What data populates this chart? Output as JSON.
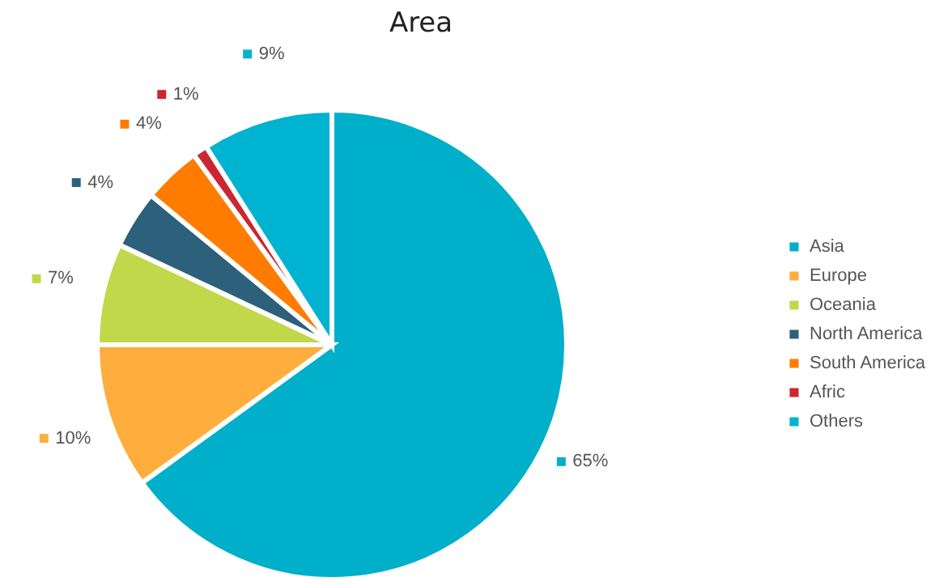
{
  "chart_data": {
    "type": "pie",
    "title": "Area",
    "categories": [
      "Asia",
      "Europe",
      "Oceania",
      "North America",
      "South America",
      "Afric",
      "Others"
    ],
    "values": [
      65,
      10,
      7,
      4,
      4,
      1,
      9
    ],
    "colors": [
      "#00afc9",
      "#ffad3d",
      "#c1d84a",
      "#2d607a",
      "#ff7c00",
      "#cc2630",
      "#00b3d1"
    ],
    "value_labels": [
      "65%",
      "10%",
      "7%",
      "4%",
      "4%",
      "1%",
      "9%"
    ],
    "legend": "right"
  }
}
